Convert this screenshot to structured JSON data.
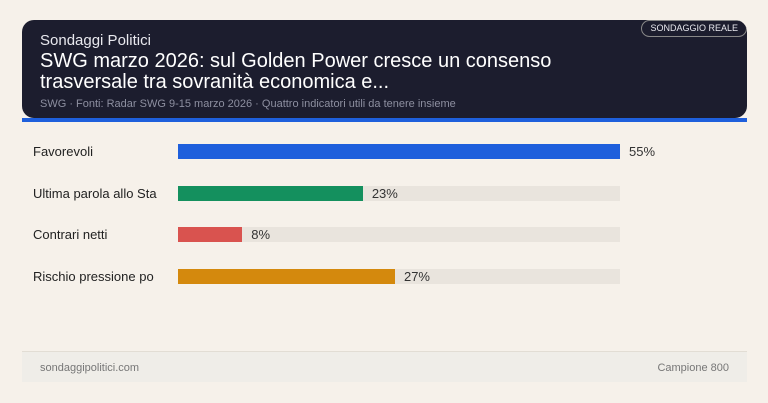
{
  "header": {
    "brand": "Sondaggi Politici",
    "title": "SWG marzo 2026: sul Golden Power cresce un consenso trasversale tra sovranità economica e...",
    "subtitle": "SWG · Fonti: Radar SWG 9-15 marzo 2026 · Quattro indicatori utili da tenere insieme",
    "badge": "SONDAGGIO REALE",
    "accent_color": "#1e5fdc"
  },
  "chart_data": {
    "type": "bar",
    "orientation": "horizontal",
    "categories": [
      "Favorevoli",
      "Ultima parola allo Sta",
      "Contrari netti",
      "Rischio pressione po"
    ],
    "values": [
      55,
      23,
      8,
      27
    ],
    "data_labels": [
      "55%",
      "23%",
      "8%",
      "27%"
    ],
    "colors": [
      "#1e5fdc",
      "#14905e",
      "#d9534f",
      "#d4890d"
    ],
    "xlim": [
      0,
      55
    ]
  },
  "footer": {
    "site": "sondaggipolitici.com",
    "sample": "Campione 800"
  }
}
